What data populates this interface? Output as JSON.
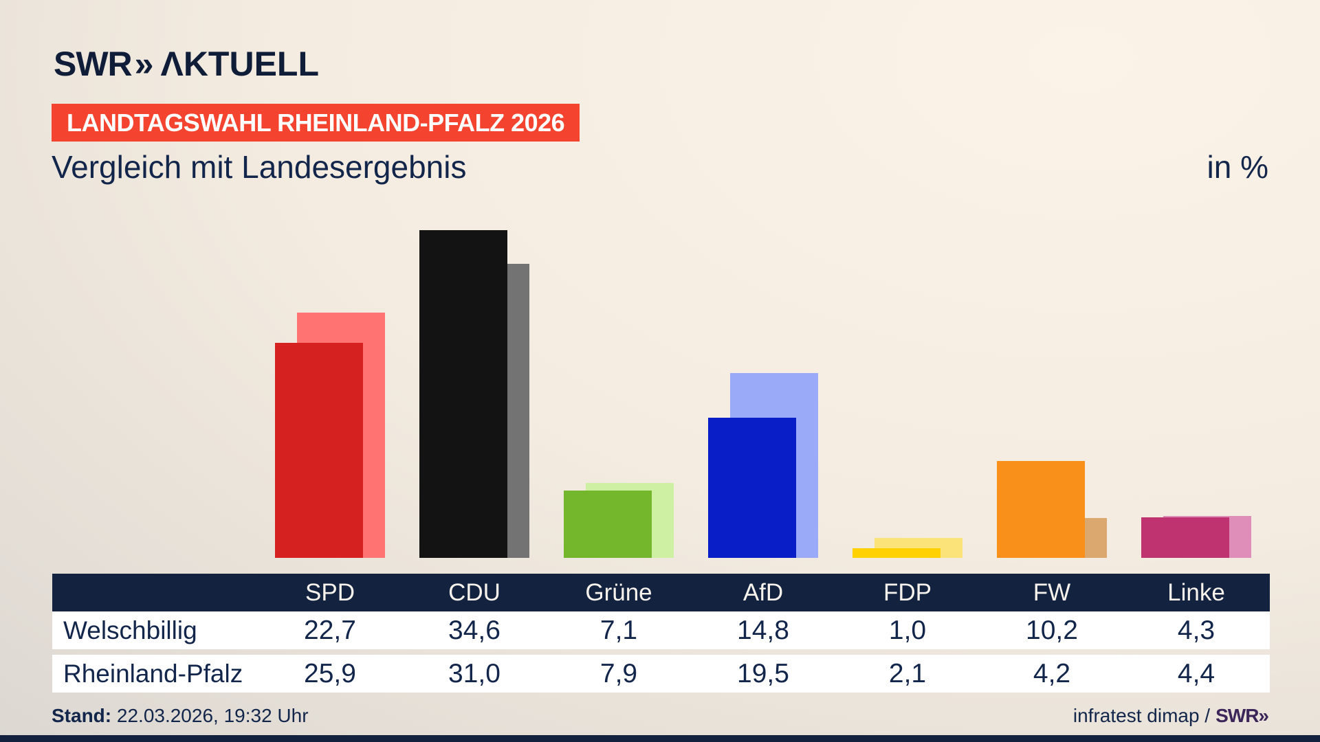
{
  "logo": {
    "swr": "SWR",
    "chevrons": "»",
    "suffix": "ΛKTUELL"
  },
  "badge": {
    "text": "LANDTAGSWAHL RHEINLAND-PFALZ 2026",
    "bg": "#f4432e"
  },
  "header": {
    "title": "Vergleich mit Landesergebnis",
    "unit": "in %"
  },
  "chart_data": {
    "type": "bar",
    "title": "Vergleich mit Landesergebnis",
    "ylabel": "in %",
    "categories": [
      "SPD",
      "CDU",
      "Grüne",
      "AfD",
      "FDP",
      "FW",
      "Linke"
    ],
    "series": [
      {
        "name": "Welschbillig",
        "values": [
          22.7,
          34.6,
          7.1,
          14.8,
          1.0,
          10.2,
          4.3
        ],
        "display": [
          "22,7",
          "34,6",
          "7,1",
          "14,8",
          "1,0",
          "10,2",
          "4,3"
        ],
        "colors": [
          "#d52220",
          "#131313",
          "#74b62c",
          "#0a1ec8",
          "#ffd103",
          "#f9901a",
          "#c03371"
        ]
      },
      {
        "name": "Rheinland-Pfalz",
        "values": [
          25.9,
          31.0,
          7.9,
          19.5,
          2.1,
          4.2,
          4.4
        ],
        "display": [
          "25,9",
          "31,0",
          "7,9",
          "19,5",
          "2,1",
          "4,2",
          "4,4"
        ],
        "colors": [
          "#ff7472",
          "#747374",
          "#cdf0a3",
          "#9aaaf8",
          "#fce379",
          "#dba970",
          "#df8db9"
        ]
      }
    ],
    "ylim": [
      0,
      40
    ],
    "grid": false,
    "legend_position": "table-below-chart",
    "bar_style": "front-back-offset-3d"
  },
  "footer": {
    "stand_label": "Stand:",
    "stand_value": " 22.03.2026, 19:32 Uhr",
    "source": "infratest dimap /",
    "brand": "SWR»"
  }
}
